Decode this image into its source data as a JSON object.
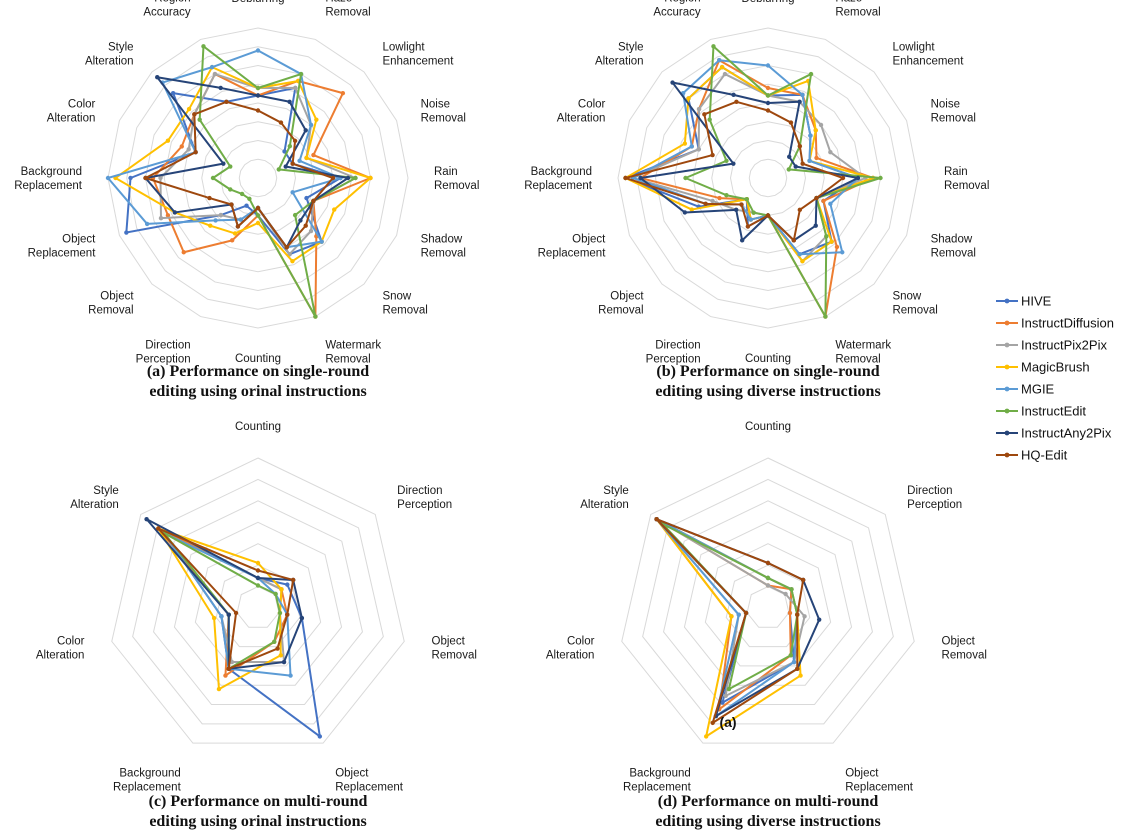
{
  "series_styles": [
    {
      "name": "HIVE",
      "color": "#4472C4"
    },
    {
      "name": "InstructDiffusion",
      "color": "#ED7D31"
    },
    {
      "name": "InstructPix2Pix",
      "color": "#A5A5A5"
    },
    {
      "name": "MagicBrush",
      "color": "#FFC000"
    },
    {
      "name": "MGIE",
      "color": "#5B9BD5"
    },
    {
      "name": "InstructEdit",
      "color": "#70AD47"
    },
    {
      "name": "InstructAny2Pix",
      "color": "#264478"
    },
    {
      "name": "HQ-Edit",
      "color": "#9E480E"
    }
  ],
  "stray_label": "(a)",
  "chart_data": [
    {
      "type": "radar",
      "caption": [
        "(a) Performance on single-round",
        "editing using orinal instructions"
      ],
      "axes": [
        "Deblurring",
        "Haze\nRemoval",
        "Lowlight\nEnhancement",
        "Noise\nRemoval",
        "Rain\nRemoval",
        "Shadow\nRemoval",
        "Snow\nRemoval",
        "Watermark\nRemoval",
        "Counting",
        "Direction\nPerception",
        "Object\nRemoval",
        "Object\nReplacement",
        "Background\nReplacement",
        "Color\nAlteration",
        "Style\nAlteration",
        "Region\nAccuracy"
      ],
      "range": [
        0,
        1
      ],
      "grid_levels": 8,
      "legend": "right",
      "series": [
        {
          "name": "HIVE",
          "values": [
            0.55,
            0.65,
            0.25,
            0.25,
            0.55,
            0.35,
            0.6,
            0.55,
            0.25,
            0.2,
            0.35,
            0.95,
            0.85,
            0.45,
            0.8,
            0.55
          ]
        },
        {
          "name": "InstructDiffusion",
          "values": [
            0.55,
            0.7,
            0.8,
            0.4,
            0.75,
            0.4,
            0.55,
            1.0,
            0.25,
            0.45,
            0.7,
            0.65,
            0.7,
            0.55,
            0.6,
            0.75
          ]
        },
        {
          "name": "InstructPix2Pix",
          "values": [
            0.6,
            0.65,
            0.5,
            0.35,
            0.65,
            0.4,
            0.5,
            0.55,
            0.2,
            0.3,
            0.35,
            0.7,
            0.65,
            0.5,
            0.6,
            0.75
          ]
        },
        {
          "name": "MagicBrush",
          "values": [
            0.6,
            0.7,
            0.55,
            0.35,
            0.75,
            0.55,
            0.6,
            0.6,
            0.3,
            0.4,
            0.45,
            0.6,
            0.95,
            0.65,
            0.65,
            0.8
          ]
        },
        {
          "name": "MGIE",
          "values": [
            0.85,
            0.75,
            0.5,
            0.3,
            0.55,
            0.25,
            0.6,
            0.5,
            0.2,
            0.3,
            0.4,
            0.8,
            1.0,
            0.45,
            0.9,
            0.8
          ]
        },
        {
          "name": "InstructEdit",
          "values": [
            0.6,
            0.75,
            0.3,
            0.15,
            0.65,
            0.4,
            0.35,
            1.0,
            0.25,
            0.15,
            0.15,
            0.2,
            0.3,
            0.2,
            0.55,
            0.95
          ]
        },
        {
          "name": "InstructAny2Pix",
          "values": [
            0.55,
            0.55,
            0.45,
            0.2,
            0.6,
            0.4,
            0.4,
            0.5,
            0.2,
            0.35,
            0.25,
            0.6,
            0.75,
            0.25,
            0.95,
            0.65
          ]
        },
        {
          "name": "HQ-Edit",
          "values": [
            0.45,
            0.4,
            0.35,
            0.25,
            0.5,
            0.4,
            0.45,
            0.5,
            0.2,
            0.35,
            0.25,
            0.35,
            0.75,
            0.45,
            0.6,
            0.55
          ]
        }
      ]
    },
    {
      "type": "radar",
      "caption": [
        "(b) Performance on single-round",
        "editing using diverse instructions"
      ],
      "axes": [
        "Deblurring",
        "Haze\nRemoval",
        "Lowlight\nEnhancement",
        "Noise\nRemoval",
        "Rain\nRemoval",
        "Shadow\nRemoval",
        "Snow\nRemoval",
        "Watermark\nRemoval",
        "Counting",
        "Direction\nPerception",
        "Object\nRemoval",
        "Object\nReplacement",
        "Background\nReplacement",
        "Color\nAlteration",
        "Style\nAlteration",
        "Region\nAccuracy"
      ],
      "range": [
        0,
        1
      ],
      "grid_levels": 8,
      "legend": "right",
      "series": [
        {
          "name": "HIVE",
          "values": [
            0.55,
            0.6,
            0.4,
            0.3,
            0.6,
            0.4,
            0.6,
            0.55,
            0.25,
            0.35,
            0.2,
            0.5,
            0.95,
            0.5,
            0.75,
            0.8
          ]
        },
        {
          "name": "InstructDiffusion",
          "values": [
            0.6,
            0.6,
            0.45,
            0.35,
            0.7,
            0.4,
            0.65,
            1.0,
            0.25,
            0.3,
            0.2,
            0.35,
            0.85,
            0.55,
            0.65,
            0.85
          ]
        },
        {
          "name": "InstructPix2Pix",
          "values": [
            0.55,
            0.55,
            0.5,
            0.45,
            0.65,
            0.35,
            0.55,
            0.6,
            0.25,
            0.25,
            0.3,
            0.4,
            0.9,
            0.5,
            0.65,
            0.75
          ]
        },
        {
          "name": "MagicBrush",
          "values": [
            0.55,
            0.7,
            0.45,
            0.3,
            0.7,
            0.35,
            0.6,
            0.6,
            0.25,
            0.3,
            0.2,
            0.55,
            0.95,
            0.6,
            0.75,
            0.8
          ]
        },
        {
          "name": "MGIE",
          "values": [
            0.75,
            0.6,
            0.4,
            0.3,
            0.6,
            0.45,
            0.7,
            0.55,
            0.25,
            0.3,
            0.25,
            0.45,
            0.9,
            0.55,
            0.8,
            0.85
          ]
        },
        {
          "name": "InstructEdit",
          "values": [
            0.55,
            0.75,
            0.3,
            0.15,
            0.75,
            0.35,
            0.55,
            1.0,
            0.25,
            0.25,
            0.2,
            0.3,
            0.55,
            0.3,
            0.55,
            0.95
          ]
        },
        {
          "name": "InstructAny2Pix",
          "values": [
            0.5,
            0.55,
            0.2,
            0.2,
            0.6,
            0.35,
            0.45,
            0.45,
            0.25,
            0.45,
            0.3,
            0.6,
            0.85,
            0.25,
            0.9,
            0.6
          ]
        },
        {
          "name": "HQ-Edit",
          "values": [
            0.45,
            0.4,
            0.3,
            0.25,
            0.5,
            0.35,
            0.3,
            0.45,
            0.25,
            0.35,
            0.25,
            0.45,
            0.95,
            0.4,
            0.6,
            0.55
          ]
        }
      ]
    },
    {
      "type": "radar",
      "caption": [
        "(c) Performance on multi-round",
        "editing using orinal instructions"
      ],
      "axes": [
        "Counting",
        "Direction\nPerception",
        "Object\nRemoval",
        "Object\nReplacement",
        "Background\nReplacement",
        "Color\nAlteration",
        "Style\nAlteration"
      ],
      "range": [
        0,
        1
      ],
      "grid_levels": 7,
      "legend": "right",
      "series": [
        {
          "name": "HIVE",
          "values": [
            0.2,
            0.25,
            0.3,
            0.95,
            0.45,
            0.25,
            0.8
          ]
        },
        {
          "name": "InstructDiffusion",
          "values": [
            0.2,
            0.2,
            0.2,
            0.25,
            0.5,
            0.2,
            0.85
          ]
        },
        {
          "name": "InstructPix2Pix",
          "values": [
            0.2,
            0.2,
            0.15,
            0.4,
            0.4,
            0.25,
            0.8
          ]
        },
        {
          "name": "MagicBrush",
          "values": [
            0.3,
            0.2,
            0.15,
            0.35,
            0.6,
            0.3,
            0.85
          ]
        },
        {
          "name": "MGIE",
          "values": [
            0.2,
            0.15,
            0.2,
            0.5,
            0.45,
            0.25,
            0.8
          ]
        },
        {
          "name": "InstructEdit",
          "values": [
            0.15,
            0.15,
            0.15,
            0.25,
            0.45,
            0.2,
            0.8
          ]
        },
        {
          "name": "InstructAny2Pix",
          "values": [
            0.2,
            0.3,
            0.3,
            0.4,
            0.45,
            0.2,
            0.95
          ]
        },
        {
          "name": "HQ-Edit",
          "values": [
            0.25,
            0.3,
            0.2,
            0.3,
            0.45,
            0.15,
            0.85
          ]
        }
      ]
    },
    {
      "type": "radar",
      "caption": [
        "(d) Performance on multi-round",
        "editing using diverse instructions"
      ],
      "axes": [
        "Counting",
        "Direction\nPerception",
        "Object\nRemoval",
        "Object\nReplacement",
        "Background\nReplacement",
        "Color\nAlteration",
        "Style\nAlteration"
      ],
      "range": [
        0,
        1
      ],
      "grid_levels": 7,
      "legend": "right",
      "series": [
        {
          "name": "HIVE",
          "values": [
            0.2,
            0.2,
            0.15,
            0.4,
            0.7,
            0.15,
            0.95
          ]
        },
        {
          "name": "InstructDiffusion",
          "values": [
            0.15,
            0.2,
            0.15,
            0.35,
            0.75,
            0.25,
            0.95
          ]
        },
        {
          "name": "InstructPix2Pix",
          "values": [
            0.15,
            0.15,
            0.25,
            0.4,
            0.65,
            0.2,
            0.95
          ]
        },
        {
          "name": "MagicBrush",
          "values": [
            0.2,
            0.2,
            0.2,
            0.5,
            0.95,
            0.25,
            0.95
          ]
        },
        {
          "name": "MGIE",
          "values": [
            0.2,
            0.2,
            0.2,
            0.4,
            0.8,
            0.2,
            0.95
          ]
        },
        {
          "name": "InstructEdit",
          "values": [
            0.2,
            0.2,
            0.2,
            0.35,
            0.6,
            0.15,
            0.9
          ]
        },
        {
          "name": "InstructAny2Pix",
          "values": [
            0.3,
            0.3,
            0.35,
            0.45,
            0.8,
            0.15,
            0.95
          ]
        },
        {
          "name": "HQ-Edit",
          "values": [
            0.3,
            0.3,
            0.2,
            0.45,
            0.85,
            0.15,
            0.95
          ]
        }
      ]
    }
  ]
}
